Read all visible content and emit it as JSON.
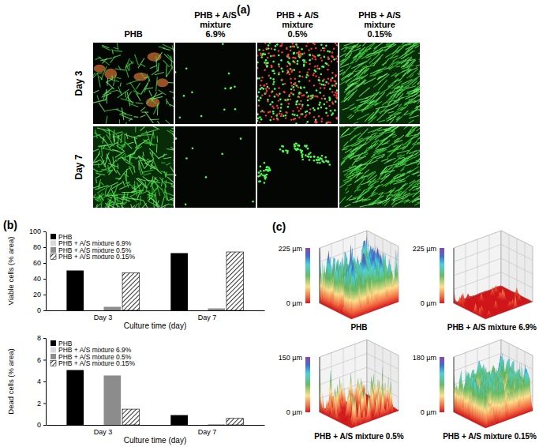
{
  "figure": {
    "panel_labels": [
      "(a)",
      "(b)",
      "(c)"
    ],
    "micrographs": {
      "columns": [
        "PHB",
        "PHB + A/S mixture 6.9%",
        "PHB + A/S mixture 0.5%",
        "PHB + A/S mixture 0.15%"
      ],
      "rows": [
        "Day 3",
        "Day 7"
      ]
    },
    "surface_plots": [
      {
        "title": "PHB",
        "z_top": "225 µm",
        "z_bottom": "0 µm"
      },
      {
        "title": "PHB + A/S mixture 6.9%",
        "z_top": "225 µm",
        "z_bottom": "0 µm"
      },
      {
        "title": "PHB + A/S mixture 0.5%",
        "z_top": "150 µm",
        "z_bottom": "0 µm"
      },
      {
        "title": "PHB + A/S mixture 0.15%",
        "z_top": "180 µm",
        "z_bottom": "0 µm"
      }
    ]
  },
  "chart_data": [
    {
      "type": "bar",
      "categories": [
        "Day 3",
        "Day 7"
      ],
      "series": [
        {
          "name": "PHB",
          "color": "#000000",
          "values": [
            50.5,
            72.5
          ]
        },
        {
          "name": "PHB + A/S mixture 6.9%",
          "color": "#d9d9d9",
          "values": [
            0.3,
            0.2
          ]
        },
        {
          "name": "PHB + A/S mixture 0.5%",
          "color": "#8c8c8c",
          "values": [
            4.5,
            2.5
          ]
        },
        {
          "name": "PHB + A/S mixture 0.15%",
          "color": "#ffffff",
          "marker": "hatch",
          "values": [
            47.5,
            74
          ]
        }
      ],
      "x_label": "Culture time (day)",
      "y_label": "Viable cells (% area)",
      "ylim": [
        0,
        100
      ],
      "yticks": [
        0,
        20,
        40,
        60,
        80,
        100
      ],
      "legend": "upper left"
    },
    {
      "type": "bar",
      "categories": [
        "Day 3",
        "Day 7"
      ],
      "series": [
        {
          "name": "PHB",
          "color": "#000000",
          "values": [
            5.05,
            0.9
          ]
        },
        {
          "name": "PHB + A/S mixture 6.9%",
          "color": "#d9d9d9",
          "values": [
            0,
            0
          ]
        },
        {
          "name": "PHB + A/S mixture 0.5%",
          "color": "#8c8c8c",
          "values": [
            4.55,
            0.05
          ]
        },
        {
          "name": "PHB + A/S mixture 0.15%",
          "color": "#ffffff",
          "marker": "hatch",
          "values": [
            1.45,
            0.6
          ]
        }
      ],
      "x_label": "Culture time (day)",
      "y_label": "Dead cells (% area)",
      "ylim": [
        0,
        8
      ],
      "yticks": [
        0,
        2,
        4,
        6,
        8
      ],
      "legend": "upper left"
    }
  ]
}
